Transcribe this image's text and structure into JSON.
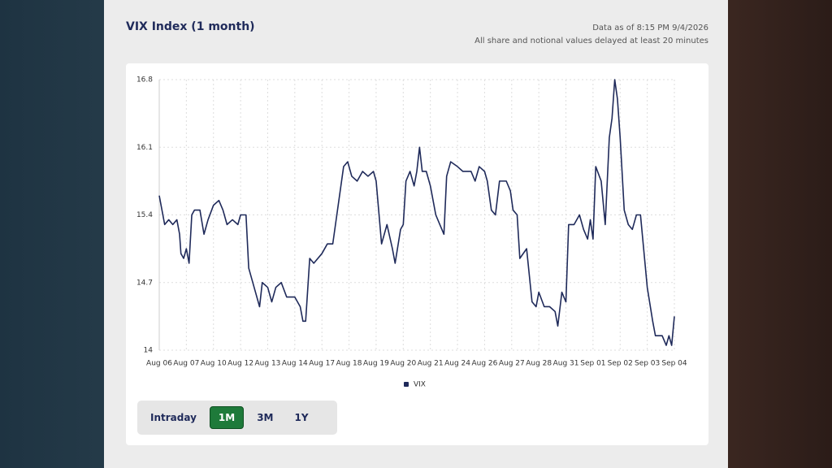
{
  "header": {
    "title": "VIX Index (1 month)",
    "as_of": "Data as of 8:15 PM 9/4/2026",
    "note": "All share and notional values delayed at least 20 minutes"
  },
  "chart_data": {
    "type": "line",
    "xlim": [
      0,
      19
    ],
    "xticks": [
      {
        "value": 0,
        "label": "Aug 06"
      },
      {
        "value": 1,
        "label": "Aug 07"
      },
      {
        "value": 2,
        "label": "Aug 10"
      },
      {
        "value": 3,
        "label": "Aug 12"
      },
      {
        "value": 4,
        "label": "Aug 13"
      },
      {
        "value": 5,
        "label": "Aug 14"
      },
      {
        "value": 6,
        "label": "Aug 17"
      },
      {
        "value": 7,
        "label": "Aug 18"
      },
      {
        "value": 8,
        "label": "Aug 19"
      },
      {
        "value": 9,
        "label": "Aug 20"
      },
      {
        "value": 10,
        "label": "Aug 21"
      },
      {
        "value": 11,
        "label": "Aug 24"
      },
      {
        "value": 12,
        "label": "Aug 26"
      },
      {
        "value": 13,
        "label": "Aug 27"
      },
      {
        "value": 14,
        "label": "Aug 28"
      },
      {
        "value": 15,
        "label": "Aug 31"
      },
      {
        "value": 16,
        "label": "Sep 01"
      },
      {
        "value": 17,
        "label": "Sep 02"
      },
      {
        "value": 18,
        "label": "Sep 03"
      },
      {
        "value": 19,
        "label": "Sep 04"
      }
    ],
    "ylim": [
      14,
      16.8
    ],
    "yticks": [
      14,
      14.7,
      15.4,
      16.1,
      16.8
    ],
    "grid": true,
    "series": [
      {
        "name": "VIX",
        "color": "#1f2a5a",
        "x": [
          0,
          0.1,
          0.2,
          0.35,
          0.5,
          0.65,
          0.75,
          0.8,
          0.9,
          1.0,
          1.1,
          1.2,
          1.3,
          1.5,
          1.65,
          1.8,
          2.0,
          2.2,
          2.35,
          2.5,
          2.7,
          2.9,
          3.0,
          3.2,
          3.3,
          3.5,
          3.7,
          3.8,
          4.0,
          4.15,
          4.3,
          4.5,
          4.7,
          5.0,
          5.2,
          5.3,
          5.4,
          5.55,
          5.7,
          6.0,
          6.2,
          6.4,
          6.6,
          6.8,
          6.95,
          7.1,
          7.3,
          7.5,
          7.7,
          7.9,
          8.0,
          8.2,
          8.4,
          8.6,
          8.7,
          8.9,
          9.0,
          9.1,
          9.25,
          9.4,
          9.5,
          9.6,
          9.7,
          9.85,
          10.0,
          10.2,
          10.35,
          10.5,
          10.6,
          10.75,
          11.0,
          11.2,
          11.5,
          11.65,
          11.8,
          12.0,
          12.1,
          12.25,
          12.4,
          12.55,
          12.8,
          12.95,
          13.05,
          13.2,
          13.3,
          13.55,
          13.75,
          13.9,
          14.0,
          14.2,
          14.4,
          14.6,
          14.7,
          14.85,
          15.0,
          15.1,
          15.3,
          15.5,
          15.65,
          15.8,
          15.9,
          16.0,
          16.1,
          16.3,
          16.45,
          16.6,
          16.7,
          16.8,
          16.9,
          17.0,
          17.15,
          17.3,
          17.45,
          17.6,
          17.75,
          17.9,
          18.0,
          18.2,
          18.3,
          18.55,
          18.7,
          18.8,
          18.9,
          19.0
        ],
        "values": [
          15.6,
          15.45,
          15.3,
          15.35,
          15.3,
          15.35,
          15.2,
          15.0,
          14.95,
          15.05,
          14.9,
          15.4,
          15.45,
          15.45,
          15.2,
          15.35,
          15.5,
          15.55,
          15.45,
          15.3,
          15.35,
          15.3,
          15.4,
          15.4,
          14.85,
          14.65,
          14.45,
          14.7,
          14.65,
          14.5,
          14.65,
          14.7,
          14.55,
          14.55,
          14.45,
          14.3,
          14.3,
          14.95,
          14.9,
          15.0,
          15.1,
          15.1,
          15.5,
          15.9,
          15.95,
          15.8,
          15.75,
          15.85,
          15.8,
          15.85,
          15.75,
          15.1,
          15.3,
          15.05,
          14.9,
          15.25,
          15.3,
          15.75,
          15.85,
          15.7,
          15.85,
          16.1,
          15.85,
          15.85,
          15.7,
          15.4,
          15.3,
          15.2,
          15.8,
          15.95,
          15.9,
          15.85,
          15.85,
          15.75,
          15.9,
          15.85,
          15.75,
          15.45,
          15.4,
          15.75,
          15.75,
          15.65,
          15.45,
          15.4,
          14.95,
          15.05,
          14.5,
          14.45,
          14.6,
          14.45,
          14.45,
          14.4,
          14.25,
          14.6,
          14.5,
          15.3,
          15.3,
          15.4,
          15.25,
          15.15,
          15.35,
          15.15,
          15.9,
          15.75,
          15.3,
          16.2,
          16.4,
          16.8,
          16.6,
          16.2,
          15.45,
          15.3,
          15.25,
          15.4,
          15.4,
          14.95,
          14.65,
          14.3,
          14.15,
          14.15,
          14.05,
          14.15,
          14.05,
          14.35
        ]
      }
    ]
  },
  "range_buttons": [
    "Intraday",
    "1M",
    "3M",
    "1Y"
  ]
}
